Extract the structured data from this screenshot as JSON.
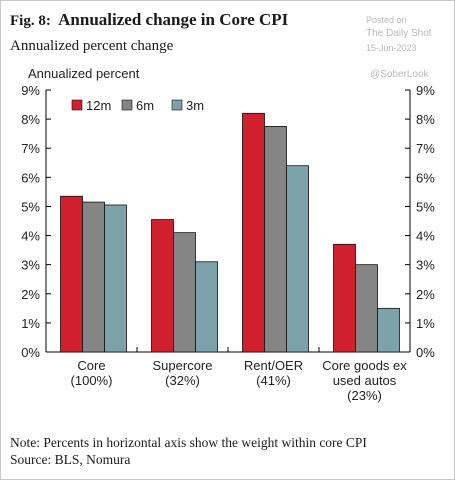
{
  "header": {
    "fig_label": "Fig. 8:",
    "title": "Annualized change in Core CPI",
    "subtitle": "Annualized percent change"
  },
  "watermark": {
    "posted_on": "Posted on",
    "source_name": "The Daily Shot",
    "date": "15-Jun-2023",
    "handle": "@SoberLook"
  },
  "footer": {
    "note": "Note: Percents in horizontal axis show the weight within core CPI",
    "source": "Source: BLS, Nomura"
  },
  "chart_data": {
    "type": "bar",
    "ylabel": "Annualized percent",
    "ylim": [
      0,
      9
    ],
    "yticks": [
      "0%",
      "1%",
      "2%",
      "3%",
      "4%",
      "5%",
      "6%",
      "7%",
      "8%",
      "9%"
    ],
    "right_axis": true,
    "grid": false,
    "legend_position": "top-left",
    "categories": [
      [
        "Core",
        "(100%)"
      ],
      [
        "Supercore",
        "(32%)"
      ],
      [
        "Rent/OER",
        "(41%)"
      ],
      [
        "Core goods ex",
        "used autos",
        "(23%)"
      ]
    ],
    "series": [
      {
        "name": "12m",
        "color": "#d0202e",
        "values": [
          5.35,
          4.55,
          8.2,
          3.7
        ]
      },
      {
        "name": "6m",
        "color": "#858585",
        "values": [
          5.15,
          4.1,
          7.75,
          3.0
        ]
      },
      {
        "name": "3m",
        "color": "#7da3aa",
        "values": [
          5.05,
          3.1,
          6.4,
          1.5
        ]
      }
    ]
  }
}
